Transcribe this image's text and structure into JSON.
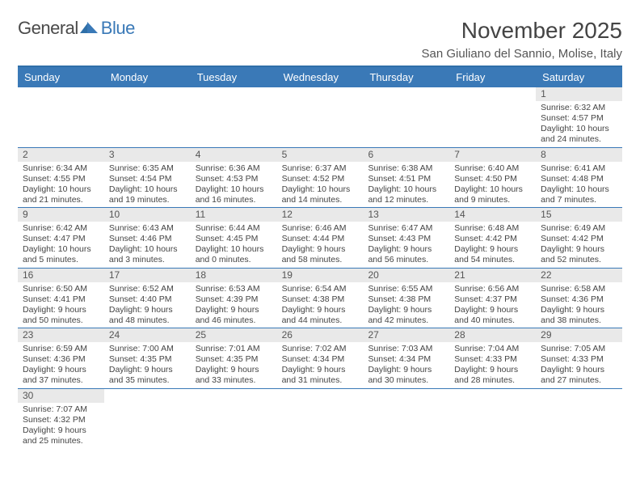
{
  "logo": {
    "text1": "General",
    "text2": "Blue"
  },
  "title": "November 2025",
  "location": "San Giuliano del Sannio, Molise, Italy",
  "colors": {
    "header_bg": "#3a79b7",
    "header_border": "#2f6fa8",
    "row_divider": "#3a79b7",
    "daynum_bg": "#e9e9e9",
    "text": "#444444",
    "logo_gray": "#4a4a4a",
    "logo_blue": "#3a79b7"
  },
  "day_names": [
    "Sunday",
    "Monday",
    "Tuesday",
    "Wednesday",
    "Thursday",
    "Friday",
    "Saturday"
  ],
  "weeks": [
    [
      {
        "n": "",
        "sr": "",
        "ss": "",
        "dl": ""
      },
      {
        "n": "",
        "sr": "",
        "ss": "",
        "dl": ""
      },
      {
        "n": "",
        "sr": "",
        "ss": "",
        "dl": ""
      },
      {
        "n": "",
        "sr": "",
        "ss": "",
        "dl": ""
      },
      {
        "n": "",
        "sr": "",
        "ss": "",
        "dl": ""
      },
      {
        "n": "",
        "sr": "",
        "ss": "",
        "dl": ""
      },
      {
        "n": "1",
        "sr": "Sunrise: 6:32 AM",
        "ss": "Sunset: 4:57 PM",
        "dl": "Daylight: 10 hours and 24 minutes."
      }
    ],
    [
      {
        "n": "2",
        "sr": "Sunrise: 6:34 AM",
        "ss": "Sunset: 4:55 PM",
        "dl": "Daylight: 10 hours and 21 minutes."
      },
      {
        "n": "3",
        "sr": "Sunrise: 6:35 AM",
        "ss": "Sunset: 4:54 PM",
        "dl": "Daylight: 10 hours and 19 minutes."
      },
      {
        "n": "4",
        "sr": "Sunrise: 6:36 AM",
        "ss": "Sunset: 4:53 PM",
        "dl": "Daylight: 10 hours and 16 minutes."
      },
      {
        "n": "5",
        "sr": "Sunrise: 6:37 AM",
        "ss": "Sunset: 4:52 PM",
        "dl": "Daylight: 10 hours and 14 minutes."
      },
      {
        "n": "6",
        "sr": "Sunrise: 6:38 AM",
        "ss": "Sunset: 4:51 PM",
        "dl": "Daylight: 10 hours and 12 minutes."
      },
      {
        "n": "7",
        "sr": "Sunrise: 6:40 AM",
        "ss": "Sunset: 4:50 PM",
        "dl": "Daylight: 10 hours and 9 minutes."
      },
      {
        "n": "8",
        "sr": "Sunrise: 6:41 AM",
        "ss": "Sunset: 4:48 PM",
        "dl": "Daylight: 10 hours and 7 minutes."
      }
    ],
    [
      {
        "n": "9",
        "sr": "Sunrise: 6:42 AM",
        "ss": "Sunset: 4:47 PM",
        "dl": "Daylight: 10 hours and 5 minutes."
      },
      {
        "n": "10",
        "sr": "Sunrise: 6:43 AM",
        "ss": "Sunset: 4:46 PM",
        "dl": "Daylight: 10 hours and 3 minutes."
      },
      {
        "n": "11",
        "sr": "Sunrise: 6:44 AM",
        "ss": "Sunset: 4:45 PM",
        "dl": "Daylight: 10 hours and 0 minutes."
      },
      {
        "n": "12",
        "sr": "Sunrise: 6:46 AM",
        "ss": "Sunset: 4:44 PM",
        "dl": "Daylight: 9 hours and 58 minutes."
      },
      {
        "n": "13",
        "sr": "Sunrise: 6:47 AM",
        "ss": "Sunset: 4:43 PM",
        "dl": "Daylight: 9 hours and 56 minutes."
      },
      {
        "n": "14",
        "sr": "Sunrise: 6:48 AM",
        "ss": "Sunset: 4:42 PM",
        "dl": "Daylight: 9 hours and 54 minutes."
      },
      {
        "n": "15",
        "sr": "Sunrise: 6:49 AM",
        "ss": "Sunset: 4:42 PM",
        "dl": "Daylight: 9 hours and 52 minutes."
      }
    ],
    [
      {
        "n": "16",
        "sr": "Sunrise: 6:50 AM",
        "ss": "Sunset: 4:41 PM",
        "dl": "Daylight: 9 hours and 50 minutes."
      },
      {
        "n": "17",
        "sr": "Sunrise: 6:52 AM",
        "ss": "Sunset: 4:40 PM",
        "dl": "Daylight: 9 hours and 48 minutes."
      },
      {
        "n": "18",
        "sr": "Sunrise: 6:53 AM",
        "ss": "Sunset: 4:39 PM",
        "dl": "Daylight: 9 hours and 46 minutes."
      },
      {
        "n": "19",
        "sr": "Sunrise: 6:54 AM",
        "ss": "Sunset: 4:38 PM",
        "dl": "Daylight: 9 hours and 44 minutes."
      },
      {
        "n": "20",
        "sr": "Sunrise: 6:55 AM",
        "ss": "Sunset: 4:38 PM",
        "dl": "Daylight: 9 hours and 42 minutes."
      },
      {
        "n": "21",
        "sr": "Sunrise: 6:56 AM",
        "ss": "Sunset: 4:37 PM",
        "dl": "Daylight: 9 hours and 40 minutes."
      },
      {
        "n": "22",
        "sr": "Sunrise: 6:58 AM",
        "ss": "Sunset: 4:36 PM",
        "dl": "Daylight: 9 hours and 38 minutes."
      }
    ],
    [
      {
        "n": "23",
        "sr": "Sunrise: 6:59 AM",
        "ss": "Sunset: 4:36 PM",
        "dl": "Daylight: 9 hours and 37 minutes."
      },
      {
        "n": "24",
        "sr": "Sunrise: 7:00 AM",
        "ss": "Sunset: 4:35 PM",
        "dl": "Daylight: 9 hours and 35 minutes."
      },
      {
        "n": "25",
        "sr": "Sunrise: 7:01 AM",
        "ss": "Sunset: 4:35 PM",
        "dl": "Daylight: 9 hours and 33 minutes."
      },
      {
        "n": "26",
        "sr": "Sunrise: 7:02 AM",
        "ss": "Sunset: 4:34 PM",
        "dl": "Daylight: 9 hours and 31 minutes."
      },
      {
        "n": "27",
        "sr": "Sunrise: 7:03 AM",
        "ss": "Sunset: 4:34 PM",
        "dl": "Daylight: 9 hours and 30 minutes."
      },
      {
        "n": "28",
        "sr": "Sunrise: 7:04 AM",
        "ss": "Sunset: 4:33 PM",
        "dl": "Daylight: 9 hours and 28 minutes."
      },
      {
        "n": "29",
        "sr": "Sunrise: 7:05 AM",
        "ss": "Sunset: 4:33 PM",
        "dl": "Daylight: 9 hours and 27 minutes."
      }
    ],
    [
      {
        "n": "30",
        "sr": "Sunrise: 7:07 AM",
        "ss": "Sunset: 4:32 PM",
        "dl": "Daylight: 9 hours and 25 minutes."
      },
      {
        "n": "",
        "sr": "",
        "ss": "",
        "dl": ""
      },
      {
        "n": "",
        "sr": "",
        "ss": "",
        "dl": ""
      },
      {
        "n": "",
        "sr": "",
        "ss": "",
        "dl": ""
      },
      {
        "n": "",
        "sr": "",
        "ss": "",
        "dl": ""
      },
      {
        "n": "",
        "sr": "",
        "ss": "",
        "dl": ""
      },
      {
        "n": "",
        "sr": "",
        "ss": "",
        "dl": ""
      }
    ]
  ]
}
